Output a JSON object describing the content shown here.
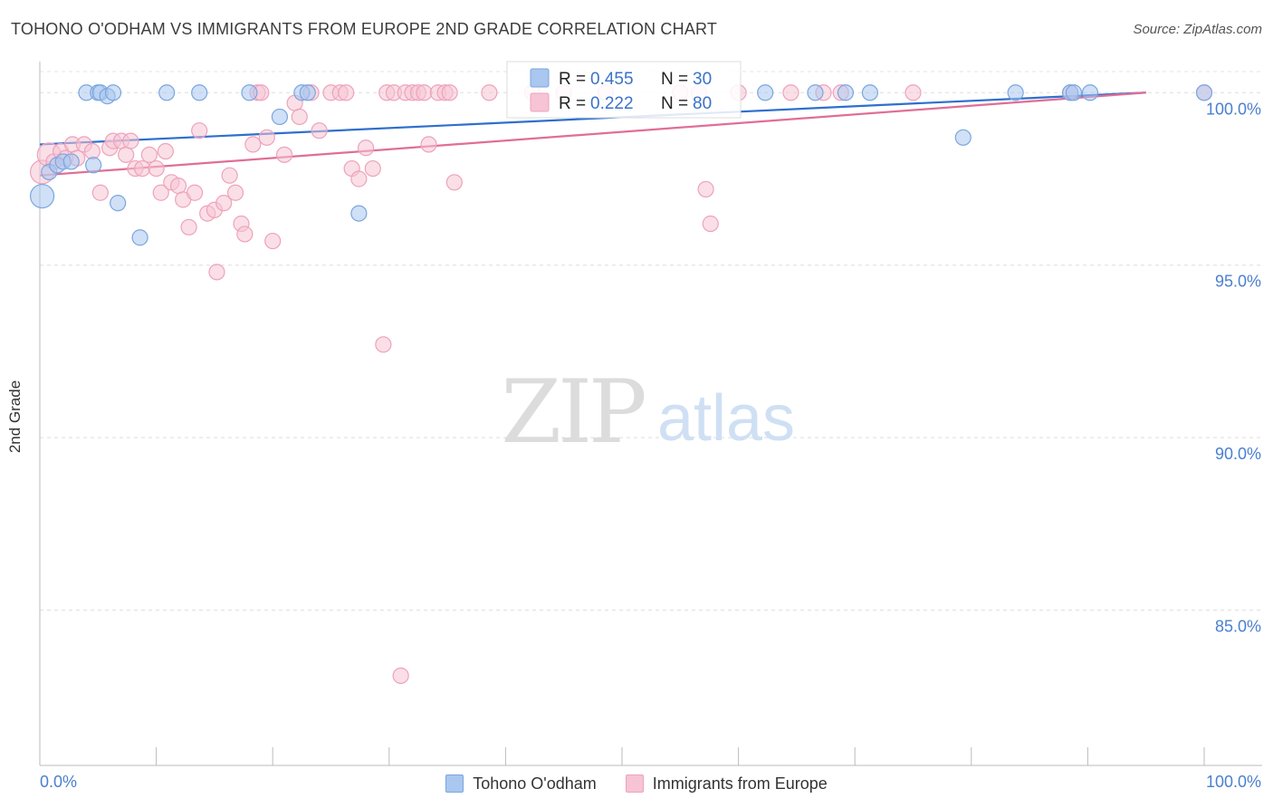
{
  "title": "TOHONO O'ODHAM VS IMMIGRANTS FROM EUROPE 2ND GRADE CORRELATION CHART",
  "source": "Source: ZipAtlas.com",
  "watermark": {
    "zip": "ZIP",
    "atlas": "atlas"
  },
  "chart_data": {
    "type": "scatter",
    "ylabel": "2nd Grade",
    "xlabel": "",
    "xlim": [
      0,
      100
    ],
    "ylim": [
      80.5,
      100.9
    ],
    "x_tick_labels": {
      "left": "0.0%",
      "right": "100.0%"
    },
    "y_ticks": [
      {
        "value": 100,
        "label": "100.0%"
      },
      {
        "value": 95,
        "label": "95.0%"
      },
      {
        "value": 90,
        "label": "90.0%"
      },
      {
        "value": 85,
        "label": "85.0%"
      }
    ],
    "series": [
      {
        "name": "Tohono O'odham",
        "color": "#7aa6e0",
        "fill": "#a9c7ef",
        "line_color": "#2e6fce",
        "R": "0.455",
        "N": "30",
        "trend": {
          "x": [
            0,
            95
          ],
          "y": [
            98.5,
            100
          ]
        },
        "points": [
          {
            "x": 0.2,
            "y": 97.0,
            "big": true
          },
          {
            "x": 0.8,
            "y": 97.7
          },
          {
            "x": 1.5,
            "y": 97.9
          },
          {
            "x": 2.0,
            "y": 98.0
          },
          {
            "x": 2.7,
            "y": 98.0
          },
          {
            "x": 4.6,
            "y": 97.9
          },
          {
            "x": 4.0,
            "y": 100
          },
          {
            "x": 5.0,
            "y": 100
          },
          {
            "x": 5.2,
            "y": 100
          },
          {
            "x": 5.8,
            "y": 99.9
          },
          {
            "x": 6.3,
            "y": 100
          },
          {
            "x": 6.7,
            "y": 96.8
          },
          {
            "x": 8.6,
            "y": 95.8
          },
          {
            "x": 10.9,
            "y": 100
          },
          {
            "x": 13.7,
            "y": 100
          },
          {
            "x": 18.0,
            "y": 100
          },
          {
            "x": 20.6,
            "y": 99.3
          },
          {
            "x": 22.5,
            "y": 100
          },
          {
            "x": 23.0,
            "y": 100
          },
          {
            "x": 27.4,
            "y": 96.5
          },
          {
            "x": 62.3,
            "y": 100
          },
          {
            "x": 66.6,
            "y": 100
          },
          {
            "x": 69.2,
            "y": 100
          },
          {
            "x": 71.3,
            "y": 100
          },
          {
            "x": 79.3,
            "y": 98.7
          },
          {
            "x": 83.8,
            "y": 100
          },
          {
            "x": 88.5,
            "y": 100
          },
          {
            "x": 88.8,
            "y": 100
          },
          {
            "x": 90.2,
            "y": 100
          },
          {
            "x": 100.0,
            "y": 100
          }
        ]
      },
      {
        "name": "Immigrants from Europe",
        "color": "#eea2bc",
        "fill": "#f6c4d4",
        "line_color": "#e06e96",
        "R": "0.222",
        "N": "80",
        "trend": {
          "x": [
            0,
            95
          ],
          "y": [
            97.6,
            100
          ]
        },
        "points": [
          {
            "x": 0.2,
            "y": 97.7,
            "big": true
          },
          {
            "x": 0.8,
            "y": 98.2,
            "big": true
          },
          {
            "x": 1.2,
            "y": 98.0
          },
          {
            "x": 1.8,
            "y": 98.3
          },
          {
            "x": 2.2,
            "y": 98.1
          },
          {
            "x": 2.8,
            "y": 98.5
          },
          {
            "x": 3.2,
            "y": 98.1
          },
          {
            "x": 3.8,
            "y": 98.5
          },
          {
            "x": 4.5,
            "y": 98.3
          },
          {
            "x": 5.2,
            "y": 97.1
          },
          {
            "x": 6.0,
            "y": 98.4
          },
          {
            "x": 6.3,
            "y": 98.6
          },
          {
            "x": 7.0,
            "y": 98.6
          },
          {
            "x": 7.4,
            "y": 98.2
          },
          {
            "x": 7.8,
            "y": 98.6
          },
          {
            "x": 8.2,
            "y": 97.8
          },
          {
            "x": 8.8,
            "y": 97.8
          },
          {
            "x": 9.4,
            "y": 98.2
          },
          {
            "x": 10.0,
            "y": 97.8
          },
          {
            "x": 10.4,
            "y": 97.1
          },
          {
            "x": 10.8,
            "y": 98.3
          },
          {
            "x": 11.3,
            "y": 97.4
          },
          {
            "x": 11.9,
            "y": 97.3
          },
          {
            "x": 12.3,
            "y": 96.9
          },
          {
            "x": 12.8,
            "y": 96.1
          },
          {
            "x": 13.3,
            "y": 97.1
          },
          {
            "x": 13.7,
            "y": 98.9
          },
          {
            "x": 14.4,
            "y": 96.5
          },
          {
            "x": 15.0,
            "y": 96.6
          },
          {
            "x": 15.2,
            "y": 94.8
          },
          {
            "x": 15.8,
            "y": 96.8
          },
          {
            "x": 16.3,
            "y": 97.6
          },
          {
            "x": 16.8,
            "y": 97.1
          },
          {
            "x": 17.3,
            "y": 96.2
          },
          {
            "x": 17.6,
            "y": 95.9
          },
          {
            "x": 18.3,
            "y": 98.5
          },
          {
            "x": 18.7,
            "y": 100
          },
          {
            "x": 19.0,
            "y": 100
          },
          {
            "x": 19.5,
            "y": 98.7
          },
          {
            "x": 20.0,
            "y": 95.7
          },
          {
            "x": 21.0,
            "y": 98.2
          },
          {
            "x": 21.9,
            "y": 99.7
          },
          {
            "x": 22.3,
            "y": 99.3
          },
          {
            "x": 23.3,
            "y": 100
          },
          {
            "x": 24.0,
            "y": 98.9
          },
          {
            "x": 25.0,
            "y": 100
          },
          {
            "x": 25.8,
            "y": 100
          },
          {
            "x": 26.3,
            "y": 100
          },
          {
            "x": 26.8,
            "y": 97.8
          },
          {
            "x": 27.4,
            "y": 97.5
          },
          {
            "x": 28.0,
            "y": 98.4
          },
          {
            "x": 28.6,
            "y": 97.8
          },
          {
            "x": 29.5,
            "y": 92.7
          },
          {
            "x": 29.8,
            "y": 100
          },
          {
            "x": 30.4,
            "y": 100
          },
          {
            "x": 31.0,
            "y": 83.1
          },
          {
            "x": 31.4,
            "y": 100
          },
          {
            "x": 32.0,
            "y": 100
          },
          {
            "x": 32.5,
            "y": 100
          },
          {
            "x": 33.0,
            "y": 100
          },
          {
            "x": 33.4,
            "y": 98.5
          },
          {
            "x": 34.2,
            "y": 100
          },
          {
            "x": 34.8,
            "y": 100
          },
          {
            "x": 35.2,
            "y": 100
          },
          {
            "x": 35.6,
            "y": 97.4
          },
          {
            "x": 38.6,
            "y": 100
          },
          {
            "x": 42.3,
            "y": 100
          },
          {
            "x": 45.0,
            "y": 100
          },
          {
            "x": 48.6,
            "y": 100
          },
          {
            "x": 55.0,
            "y": 100
          },
          {
            "x": 56.6,
            "y": 100
          },
          {
            "x": 57.2,
            "y": 97.2
          },
          {
            "x": 57.6,
            "y": 96.2
          },
          {
            "x": 60.0,
            "y": 100
          },
          {
            "x": 64.5,
            "y": 100
          },
          {
            "x": 67.3,
            "y": 100
          },
          {
            "x": 68.8,
            "y": 100
          },
          {
            "x": 75.0,
            "y": 100
          },
          {
            "x": 88.5,
            "y": 100
          },
          {
            "x": 100.0,
            "y": 100
          }
        ]
      }
    ]
  }
}
